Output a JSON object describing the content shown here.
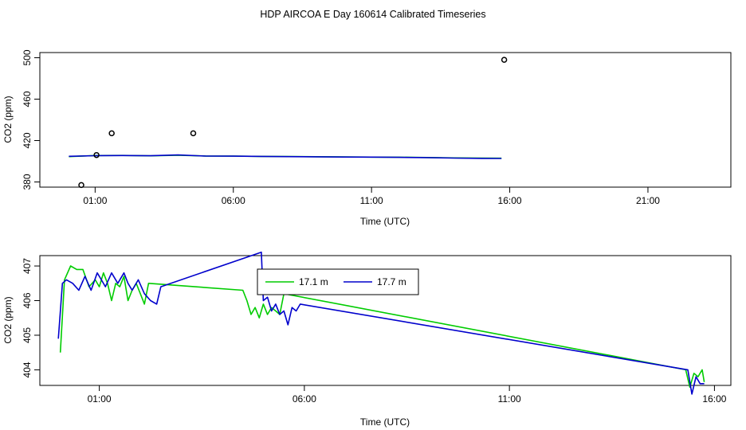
{
  "title": "HDP AIRCOA E  Day 160614  Calibrated Timeseries",
  "chart_data": [
    {
      "type": "line",
      "xlabel": "Time (UTC)",
      "ylabel": "CO2 (ppm)",
      "xlim": [
        -1,
        24.0
      ],
      "ylim": [
        375,
        505
      ],
      "xticks": [
        1,
        6,
        11,
        16,
        21
      ],
      "xtick_labels": [
        "01:00",
        "06:00",
        "11:00",
        "16:00",
        "21:00"
      ],
      "yticks": [
        380,
        420,
        460,
        500
      ],
      "ytick_labels": [
        "380",
        "420",
        "460",
        "500"
      ],
      "grid": false,
      "legend": "none",
      "points": {
        "name": "",
        "x": [
          0.5,
          1.05,
          1.6,
          4.55,
          15.8
        ],
        "y": [
          377,
          406,
          427,
          427,
          498
        ]
      },
      "series": [
        {
          "color": "#00cc00",
          "x": [
            0.05,
            1.0,
            2.0,
            3.0,
            4.0,
            5.0,
            6.0,
            7.0,
            8.0,
            9.0,
            10.0,
            11.0,
            12.0,
            13.0,
            14.0,
            15.0,
            15.7
          ],
          "y": [
            404.5,
            405.5,
            405.6,
            405.2,
            405.8,
            405.1,
            405.0,
            404.7,
            404.6,
            404.4,
            404.2,
            404.0,
            403.9,
            403.6,
            403.2,
            403.0,
            402.9
          ]
        },
        {
          "color": "#0000cc",
          "x": [
            0.05,
            1.0,
            2.0,
            3.0,
            4.0,
            5.0,
            6.0,
            7.0,
            8.0,
            9.0,
            10.0,
            11.0,
            12.0,
            13.0,
            14.0,
            15.0,
            15.7
          ],
          "y": [
            404.8,
            405.4,
            405.5,
            405.3,
            406.1,
            405.0,
            404.9,
            404.7,
            404.5,
            404.3,
            404.1,
            404.0,
            403.8,
            403.5,
            403.1,
            402.8,
            402.7
          ]
        }
      ]
    },
    {
      "type": "line",
      "xlabel": "Time (UTC)",
      "ylabel": "CO2 (ppm)",
      "xlim": [
        -0.45,
        16.4
      ],
      "ylim": [
        403.55,
        407.3
      ],
      "xticks": [
        1,
        6,
        11,
        16
      ],
      "xtick_labels": [
        "01:00",
        "06:00",
        "11:00",
        "16:00"
      ],
      "yticks": [
        404,
        405,
        406,
        407
      ],
      "ytick_labels": [
        "404",
        "405",
        "406",
        "407"
      ],
      "grid": false,
      "legend": "top-center",
      "series": [
        {
          "name": "17.1 m",
          "color": "#00cc00",
          "x": [
            0.05,
            0.15,
            0.3,
            0.45,
            0.6,
            0.75,
            0.9,
            1.0,
            1.1,
            1.2,
            1.3,
            1.4,
            1.5,
            1.6,
            1.7,
            1.8,
            1.9,
            2.0,
            2.1,
            2.2,
            4.5,
            4.6,
            4.7,
            4.8,
            4.9,
            5.0,
            5.1,
            5.2,
            5.3,
            5.4,
            5.5,
            15.3,
            15.4,
            15.5,
            15.6,
            15.7,
            15.75
          ],
          "y": [
            404.5,
            406.6,
            407.0,
            406.9,
            406.9,
            406.4,
            406.6,
            406.4,
            406.8,
            406.5,
            406.0,
            406.5,
            406.4,
            406.7,
            406.0,
            406.3,
            406.5,
            406.2,
            405.9,
            406.5,
            406.3,
            406.0,
            405.6,
            405.8,
            405.5,
            405.9,
            405.6,
            405.8,
            405.7,
            405.6,
            406.2,
            404.0,
            403.5,
            403.9,
            403.8,
            404.0,
            403.65
          ]
        },
        {
          "name": "17.7 m",
          "color": "#0000cc",
          "x": [
            0.0,
            0.1,
            0.2,
            0.35,
            0.5,
            0.65,
            0.8,
            0.95,
            1.05,
            1.15,
            1.3,
            1.45,
            1.6,
            1.7,
            1.8,
            1.95,
            2.1,
            2.25,
            2.4,
            2.5,
            4.95,
            5.0,
            5.1,
            5.2,
            5.3,
            5.4,
            5.5,
            5.6,
            5.7,
            5.8,
            5.9,
            15.35,
            15.45,
            15.55,
            15.65,
            15.75
          ],
          "y": [
            404.9,
            406.5,
            406.6,
            406.5,
            406.3,
            406.7,
            406.3,
            406.8,
            406.6,
            406.4,
            406.8,
            406.5,
            406.8,
            406.5,
            406.3,
            406.6,
            406.2,
            406.0,
            405.9,
            406.4,
            407.4,
            406.0,
            406.1,
            405.7,
            405.9,
            405.6,
            405.7,
            405.3,
            405.8,
            405.7,
            405.9,
            404.0,
            403.3,
            403.8,
            403.6,
            403.6
          ]
        }
      ]
    }
  ]
}
